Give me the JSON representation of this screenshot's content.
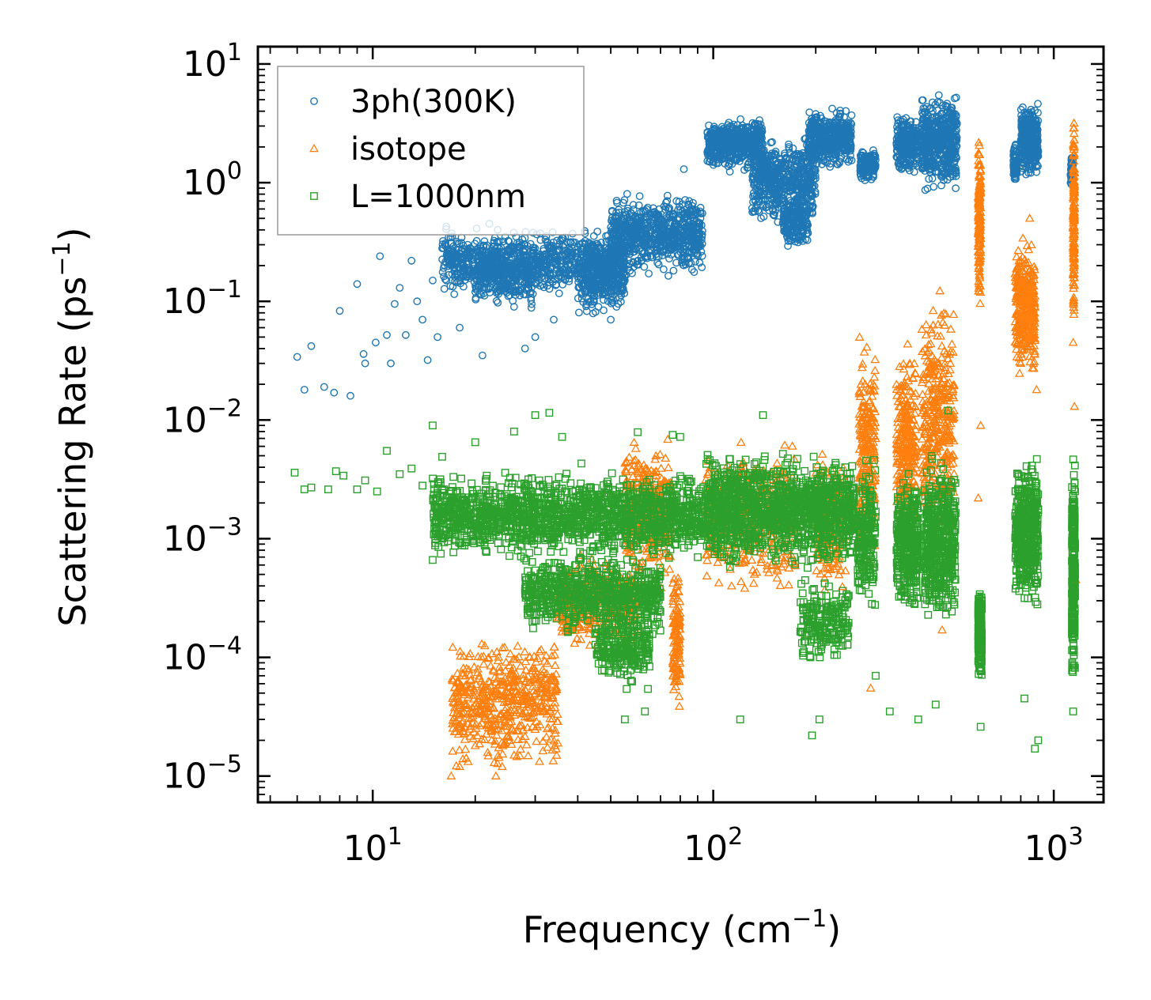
{
  "chart_data": {
    "type": "scatter",
    "title": "",
    "xlabel": "Frequency (cm",
    "xlabel_sup": "−1",
    "xlabel_close": ")",
    "ylabel": "Scattering Rate (ps",
    "ylabel_sup": "−1",
    "ylabel_close": ")",
    "xscale": "log",
    "yscale": "log",
    "xlim": [
      4.6,
      1400
    ],
    "ylim": [
      6e-06,
      14
    ],
    "grid": false,
    "legend_position": "top-left",
    "x_ticks": [
      {
        "value": 10,
        "base": "10",
        "exp": "1"
      },
      {
        "value": 100,
        "base": "10",
        "exp": "2"
      },
      {
        "value": 1000,
        "base": "10",
        "exp": "3"
      }
    ],
    "y_ticks": [
      {
        "value": 10,
        "base": "10",
        "exp": "1"
      },
      {
        "value": 1,
        "base": "10",
        "exp": "0"
      },
      {
        "value": 0.1,
        "base": "10",
        "exp": "−1"
      },
      {
        "value": 0.01,
        "base": "10",
        "exp": "−2"
      },
      {
        "value": 0.001,
        "base": "10",
        "exp": "−3"
      },
      {
        "value": 0.0001,
        "base": "10",
        "exp": "−4"
      },
      {
        "value": 1e-05,
        "base": "10",
        "exp": "−5"
      }
    ],
    "series": [
      {
        "name": "3ph(300K)",
        "marker": "circle",
        "color": "#1f77b4",
        "points": [
          [
            6,
            0.034
          ],
          [
            6.3,
            0.018
          ],
          [
            6.6,
            0.042
          ],
          [
            7.2,
            0.019
          ],
          [
            7.7,
            0.017
          ],
          [
            8,
            0.083
          ],
          [
            8.6,
            0.016
          ],
          [
            9,
            0.14
          ],
          [
            9.4,
            0.036
          ],
          [
            9.5,
            0.03
          ],
          [
            10.2,
            0.045
          ],
          [
            10.5,
            0.24
          ],
          [
            11,
            0.052
          ],
          [
            11.3,
            0.03
          ],
          [
            11.6,
            0.095
          ],
          [
            12,
            0.13
          ],
          [
            12.5,
            0.052
          ],
          [
            13,
            0.22
          ],
          [
            13.5,
            0.1
          ],
          [
            14,
            0.07
          ],
          [
            14.5,
            0.032
          ],
          [
            15,
            0.15
          ],
          [
            15.5,
            0.05
          ],
          [
            16,
            0.28
          ],
          [
            17,
            0.2
          ],
          [
            18,
            0.06
          ],
          [
            19,
            0.3
          ],
          [
            20,
            0.12
          ],
          [
            21,
            0.035
          ],
          [
            22,
            0.45
          ],
          [
            24,
            0.2
          ],
          [
            26,
            0.09
          ],
          [
            28,
            0.04
          ],
          [
            30,
            0.05
          ],
          [
            34,
            0.07
          ],
          [
            38,
            0.2
          ],
          [
            42,
            0.12
          ],
          [
            46,
            0.09
          ],
          [
            50,
            0.07
          ],
          [
            52,
            0.09
          ],
          [
            55,
            0.15
          ],
          [
            60,
            0.22
          ],
          [
            66,
            0.3
          ],
          [
            72,
            0.45
          ],
          [
            78,
            0.7
          ],
          [
            82,
            1.3
          ],
          [
            85,
            0.7
          ],
          [
            90,
            0.55
          ]
        ],
        "bands": [
          {
            "x": [
              16,
              55
            ],
            "ylow": 0.1,
            "yhigh": 0.45,
            "n": 900
          },
          {
            "x": [
              20,
              30
            ],
            "ylow": 0.08,
            "yhigh": 0.35,
            "n": 250
          },
          {
            "x": [
              40,
              55
            ],
            "ylow": 0.07,
            "yhigh": 0.4,
            "n": 350
          },
          {
            "x": [
              50,
              93
            ],
            "ylow": 0.15,
            "yhigh": 0.9,
            "n": 700
          },
          {
            "x": [
              96,
              140
            ],
            "ylow": 1.2,
            "yhigh": 3.8,
            "n": 500
          },
          {
            "x": [
              130,
              200
            ],
            "ylow": 0.4,
            "yhigh": 2.8,
            "n": 550
          },
          {
            "x": [
              160,
              190
            ],
            "ylow": 0.27,
            "yhigh": 0.8,
            "n": 180
          },
          {
            "x": [
              190,
              255
            ],
            "ylow": 1.2,
            "yhigh": 4.5,
            "n": 450
          },
          {
            "x": [
              270,
              300
            ],
            "ylow": 1.0,
            "yhigh": 2.0,
            "n": 150
          },
          {
            "x": [
              345,
              400
            ],
            "ylow": 1.1,
            "yhigh": 4.0,
            "n": 280
          },
          {
            "x": [
              410,
              520
            ],
            "ylow": 0.75,
            "yhigh": 6.5,
            "n": 500
          },
          {
            "x": [
              760,
              780
            ],
            "ylow": 0.9,
            "yhigh": 2.3,
            "n": 60
          },
          {
            "x": [
              800,
              900
            ],
            "ylow": 1.0,
            "yhigh": 5.2,
            "n": 350
          },
          {
            "x": [
              1120,
              1140
            ],
            "ylow": 0.9,
            "yhigh": 2.0,
            "n": 60
          }
        ]
      },
      {
        "name": "isotope",
        "marker": "triangle",
        "color": "#ff7f0e",
        "points": [
          [
            17,
            1e-05
          ],
          [
            18,
            1.2e-05
          ],
          [
            20,
            1.8e-05
          ],
          [
            23,
            1e-05
          ],
          [
            24,
            1.2e-05
          ],
          [
            26,
            1.5e-05
          ],
          [
            290,
            5.5e-05
          ],
          [
            470,
            0.00017
          ],
          [
            600,
            0.0022
          ],
          [
            610,
            0.009
          ],
          [
            800,
            0.03
          ],
          [
            850,
            0.5
          ],
          [
            890,
            0.018
          ],
          [
            1140,
            0.045
          ],
          [
            1150,
            0.013
          ],
          [
            1160,
            0.00045
          ]
        ],
        "bands": [
          {
            "x": [
              17,
              35
            ],
            "ylow": 1e-05,
            "yhigh": 0.00018,
            "n": 550
          },
          {
            "x": [
              35,
              60
            ],
            "ylow": 0.0001,
            "yhigh": 0.0008,
            "n": 350
          },
          {
            "x": [
              55,
              75
            ],
            "ylow": 0.0003,
            "yhigh": 0.009,
            "n": 350
          },
          {
            "x": [
              76,
              80
            ],
            "ylow": 3.2e-05,
            "yhigh": 0.0007,
            "n": 120
          },
          {
            "x": [
              95,
              175
            ],
            "ylow": 0.0003,
            "yhigh": 0.008,
            "n": 450
          },
          {
            "x": [
              200,
              245
            ],
            "ylow": 0.0003,
            "yhigh": 0.007,
            "n": 200
          },
          {
            "x": [
              268,
              300
            ],
            "ylow": 0.0004,
            "yhigh": 0.07,
            "n": 220
          },
          {
            "x": [
              345,
              395
            ],
            "ylow": 0.0008,
            "yhigh": 0.05,
            "n": 260
          },
          {
            "x": [
              410,
              510
            ],
            "ylow": 0.0006,
            "yhigh": 0.15,
            "n": 350
          },
          {
            "x": [
              600,
              610
            ],
            "ylow": 0.06,
            "yhigh": 4.5,
            "n": 150
          },
          {
            "x": [
              770,
              880
            ],
            "ylow": 0.02,
            "yhigh": 0.4,
            "n": 350
          },
          {
            "x": [
              1140,
              1150
            ],
            "ylow": 0.04,
            "yhigh": 6.0,
            "n": 160
          }
        ]
      },
      {
        "name": "L=1000nm",
        "marker": "square",
        "color": "#2ca02c",
        "points": [
          [
            5.9,
            0.0036
          ],
          [
            6.3,
            0.0026
          ],
          [
            6.6,
            0.0027
          ],
          [
            7.4,
            0.0026
          ],
          [
            7.8,
            0.0037
          ],
          [
            8.2,
            0.0034
          ],
          [
            9,
            0.0026
          ],
          [
            9.5,
            0.0031
          ],
          [
            10.3,
            0.0025
          ],
          [
            11,
            0.0055
          ],
          [
            12,
            0.0035
          ],
          [
            13,
            0.0039
          ],
          [
            14,
            0.0028
          ],
          [
            15,
            0.009
          ],
          [
            16,
            0.0049
          ],
          [
            17,
            0.0025
          ],
          [
            20,
            0.0065
          ],
          [
            26,
            0.008
          ],
          [
            30,
            0.011
          ],
          [
            33,
            0.0115
          ],
          [
            36,
            0.0072
          ],
          [
            41,
            0.0043
          ],
          [
            55,
            3e-05
          ],
          [
            63,
            3.5e-05
          ],
          [
            60,
            0.0079
          ],
          [
            76,
            0.0075
          ],
          [
            80,
            0.0072
          ],
          [
            120,
            3e-05
          ],
          [
            140,
            0.011
          ],
          [
            195,
            2.2e-05
          ],
          [
            205,
            3e-05
          ],
          [
            300,
            7e-05
          ],
          [
            330,
            3.5e-05
          ],
          [
            400,
            3e-05
          ],
          [
            450,
            4e-05
          ],
          [
            490,
            0.012
          ],
          [
            610,
            2.6e-05
          ],
          [
            820,
            4.5e-05
          ],
          [
            880,
            1.7e-05
          ],
          [
            900,
            2e-05
          ],
          [
            1140,
            3.5e-05
          ]
        ],
        "bands": [
          {
            "x": [
              15,
              95
            ],
            "ylow": 0.0006,
            "yhigh": 0.004,
            "n": 1600
          },
          {
            "x": [
              28,
              70
            ],
            "ylow": 0.00015,
            "yhigh": 0.0008,
            "n": 700
          },
          {
            "x": [
              45,
              65
            ],
            "ylow": 5e-05,
            "yhigh": 0.0003,
            "n": 250
          },
          {
            "x": [
              95,
              260
            ],
            "ylow": 0.0005,
            "yhigh": 0.006,
            "n": 1300
          },
          {
            "x": [
              180,
              250
            ],
            "ylow": 8e-05,
            "yhigh": 0.0005,
            "n": 200
          },
          {
            "x": [
              265,
              300
            ],
            "ylow": 0.0002,
            "yhigh": 0.006,
            "n": 200
          },
          {
            "x": [
              345,
              400
            ],
            "ylow": 0.0002,
            "yhigh": 0.004,
            "n": 350
          },
          {
            "x": [
              415,
              515
            ],
            "ylow": 0.00015,
            "yhigh": 0.006,
            "n": 500
          },
          {
            "x": [
              600,
              615
            ],
            "ylow": 5e-05,
            "yhigh": 0.0005,
            "n": 180
          },
          {
            "x": [
              770,
              900
            ],
            "ylow": 0.0002,
            "yhigh": 0.006,
            "n": 450
          },
          {
            "x": [
              1130,
              1155
            ],
            "ylow": 4e-05,
            "yhigh": 0.006,
            "n": 260
          }
        ]
      }
    ]
  }
}
